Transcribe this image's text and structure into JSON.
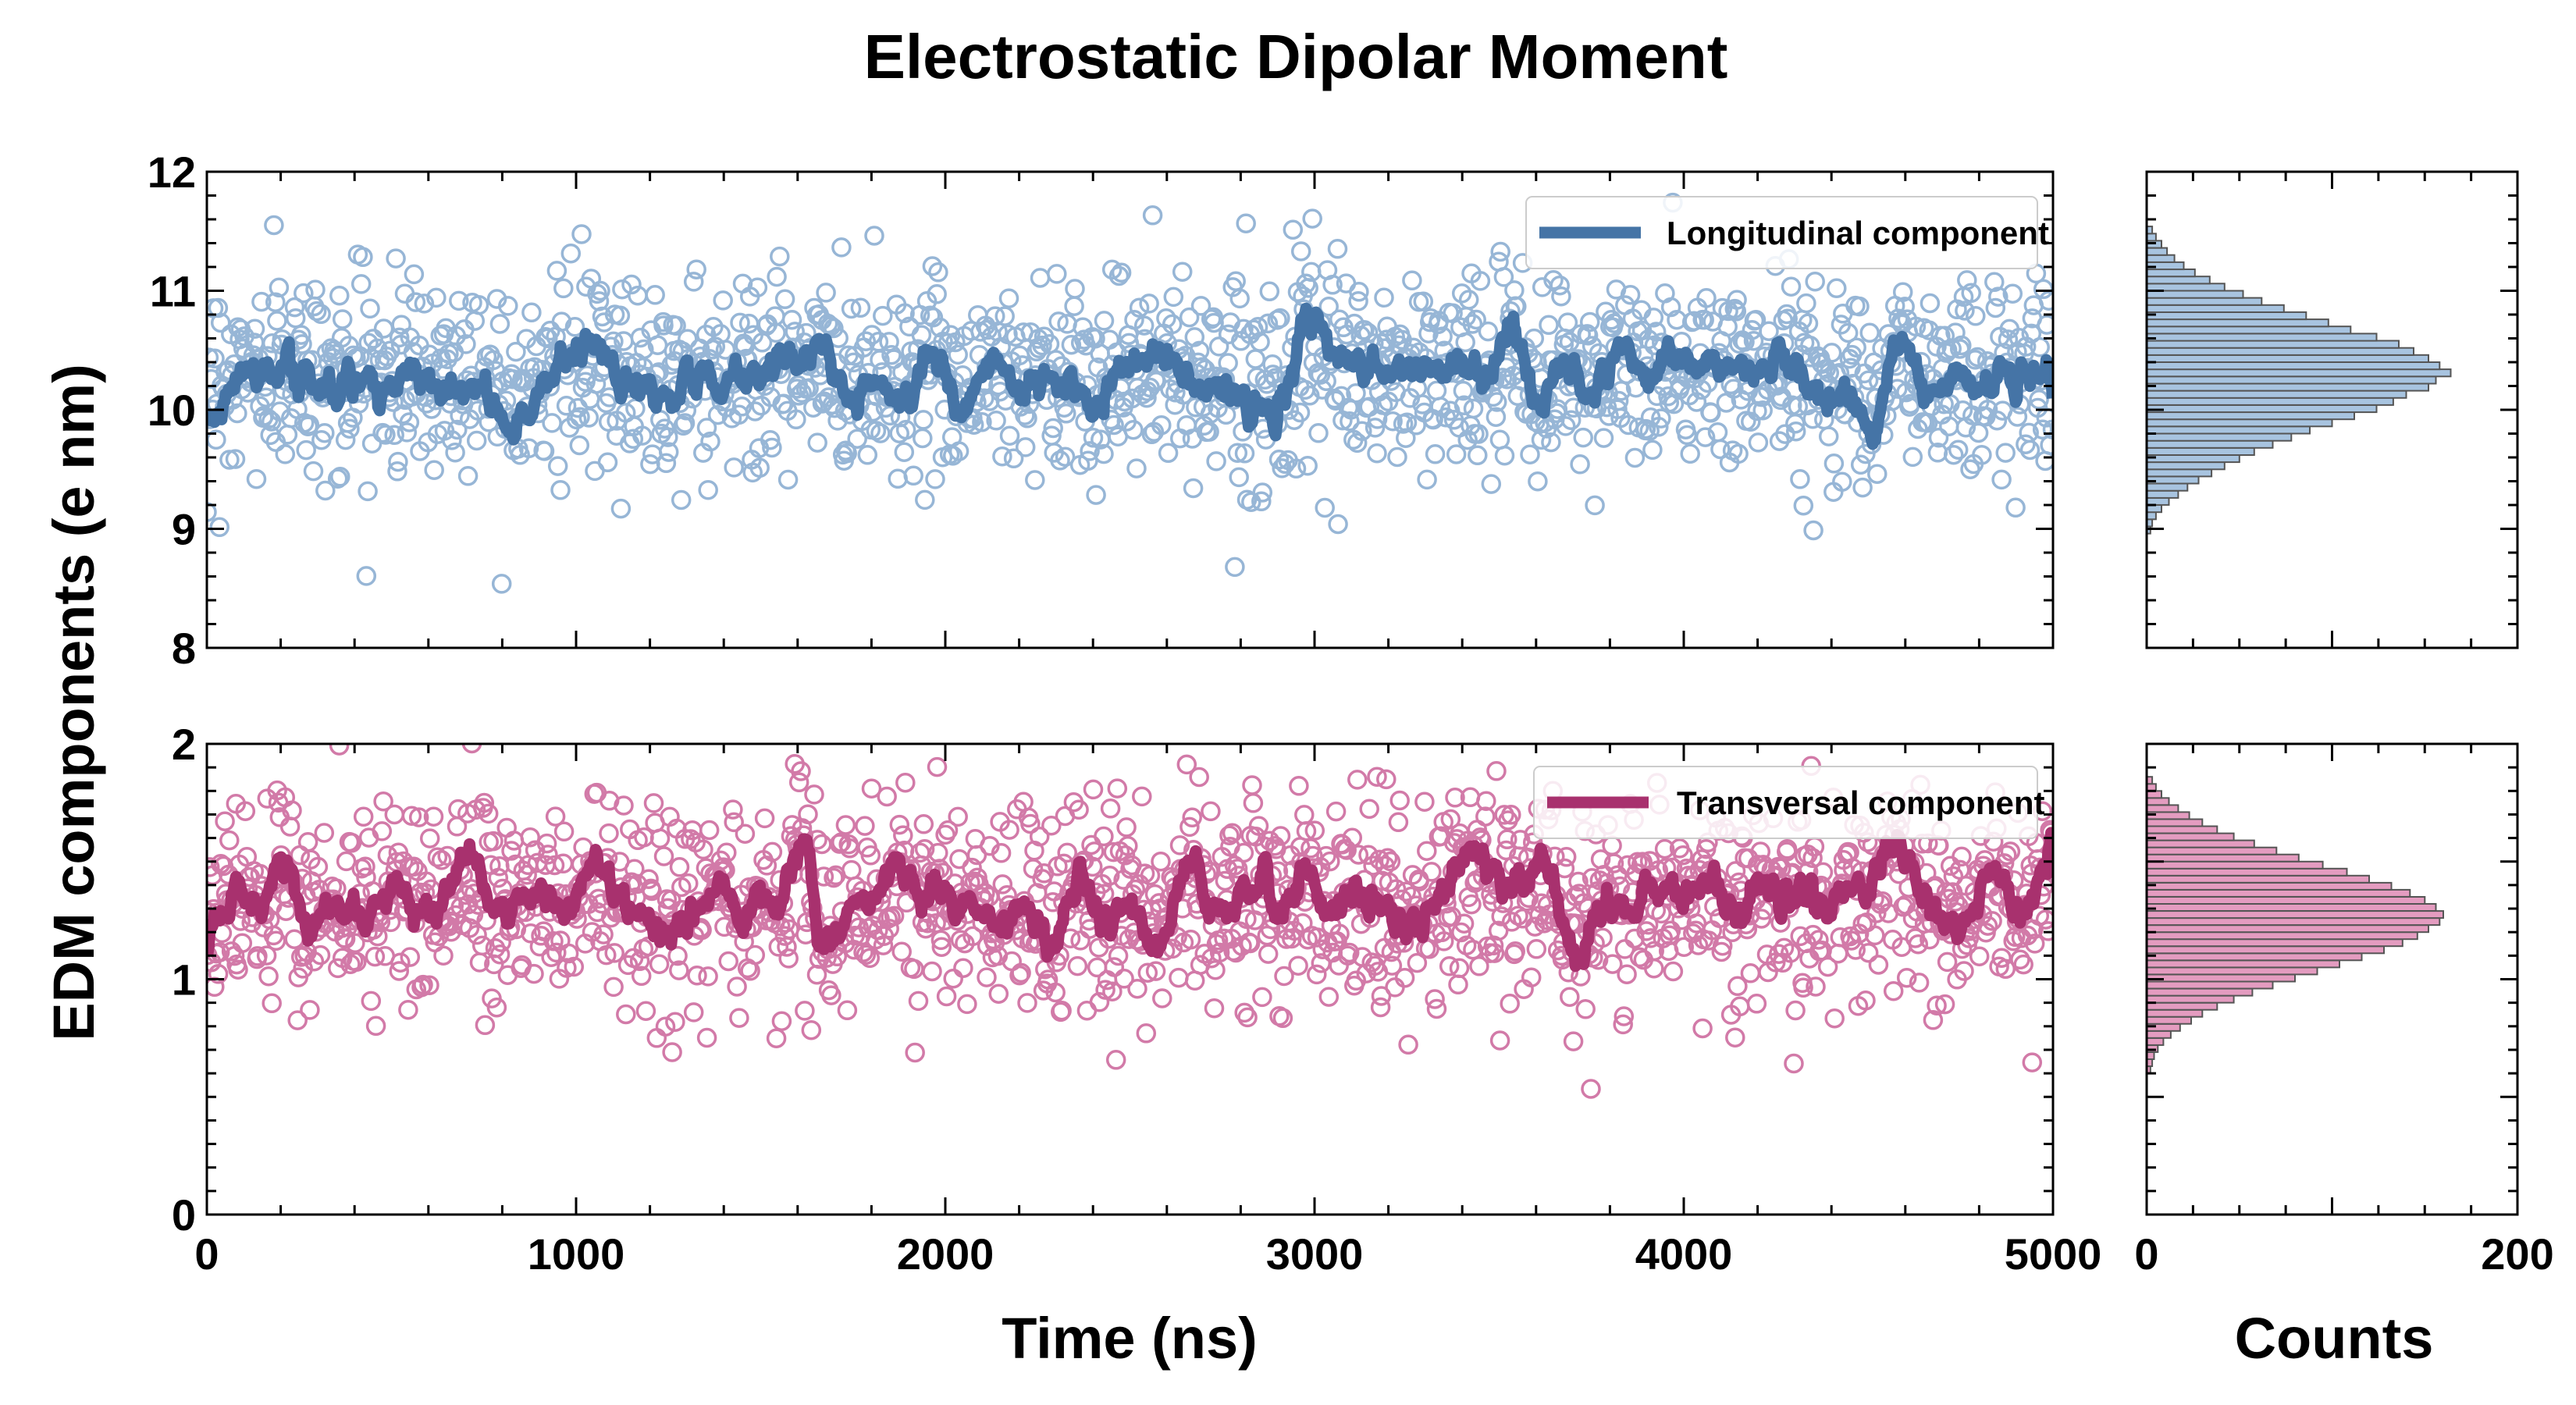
{
  "colors": {
    "longitudinal": "#4574a6",
    "longitudinal_light": "#97b6d6",
    "longitudinal_bar": "#a8c4e0",
    "transversal": "#a8316e",
    "transversal_light": "#d27aa8",
    "transversal_bar": "#e49cc0",
    "bar_edge": "#555555"
  },
  "chart_data": [
    {
      "id": "top-timeseries",
      "type": "scatter",
      "title": "Electrostatic Dipolar Moment",
      "xlabel": "",
      "ylabel": "EDM components (e nm)",
      "xlim": [
        0,
        5000
      ],
      "ylim": [
        8,
        12
      ],
      "xticks": [
        "0",
        "1000",
        "2000",
        "3000",
        "4000",
        "5000"
      ],
      "yticks": [
        "8",
        "9",
        "10",
        "11",
        "12"
      ],
      "legend_position": "top-right",
      "series": [
        {
          "name": "Longitudinal component",
          "kind": "scatter+smoothed-line",
          "mean": 10.3,
          "std": 0.42,
          "n_points": 1500,
          "x_range": [
            0,
            5000
          ]
        }
      ]
    },
    {
      "id": "bottom-timeseries",
      "type": "scatter",
      "xlabel": "Time (ns)",
      "xlim": [
        0,
        5000
      ],
      "ylim": [
        0,
        2
      ],
      "xticks": [
        "0",
        "1000",
        "2000",
        "3000",
        "4000",
        "5000"
      ],
      "yticks": [
        "0",
        "1",
        "2"
      ],
      "legend_position": "top-right",
      "series": [
        {
          "name": "Transversal component",
          "kind": "scatter+smoothed-line",
          "mean": 1.32,
          "std": 0.22,
          "n_points": 1500,
          "x_range": [
            0,
            5000
          ]
        }
      ]
    },
    {
      "id": "top-histogram",
      "type": "bar",
      "orientation": "horizontal",
      "xlim": [
        0,
        200
      ],
      "ylim": [
        8,
        12
      ],
      "bin_start": 8.96,
      "bin_width": 0.06,
      "counts": [
        2,
        3,
        5,
        8,
        12,
        17,
        22,
        28,
        35,
        42,
        50,
        58,
        68,
        78,
        88,
        100,
        112,
        124,
        133,
        140,
        152,
        156,
        164,
        158,
        152,
        144,
        136,
        124,
        110,
        98,
        86,
        74,
        62,
        52,
        42,
        34,
        26,
        20,
        15,
        11,
        8,
        5,
        3
      ]
    },
    {
      "id": "bottom-histogram",
      "type": "bar",
      "orientation": "horizontal",
      "xlabel": "Counts",
      "xlim": [
        0,
        200
      ],
      "ylim": [
        0,
        2
      ],
      "xticks": [
        "0",
        "200"
      ],
      "bin_start": 0.6,
      "bin_width": 0.03,
      "counts": [
        2,
        3,
        4,
        6,
        9,
        13,
        18,
        24,
        30,
        38,
        47,
        57,
        68,
        80,
        92,
        104,
        116,
        128,
        138,
        146,
        152,
        158,
        160,
        156,
        150,
        142,
        132,
        120,
        108,
        95,
        82,
        70,
        58,
        47,
        38,
        30,
        23,
        17,
        12,
        8,
        5,
        3
      ]
    }
  ]
}
